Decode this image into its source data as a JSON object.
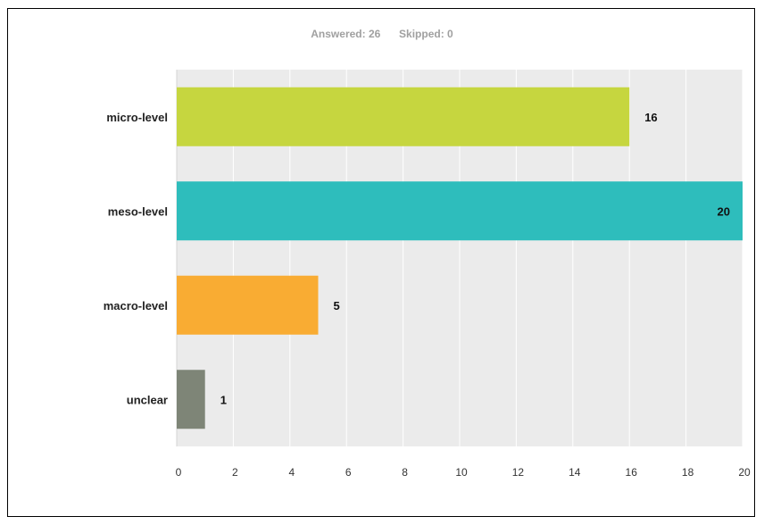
{
  "summary": {
    "answered_label": "Answered:",
    "answered_value": "26",
    "skipped_label": "Skipped:",
    "skipped_value": "0"
  },
  "chart_data": {
    "type": "bar",
    "orientation": "horizontal",
    "title": "",
    "xlabel": "",
    "ylabel": "",
    "categories": [
      "micro-level",
      "meso-level",
      "macro-level",
      "unclear"
    ],
    "values": [
      16,
      20,
      5,
      1
    ],
    "colors": [
      "#c6d63f",
      "#2ebdbc",
      "#f9ac33",
      "#7e8577"
    ],
    "xlim": [
      0,
      20
    ],
    "xticks": [
      0,
      2,
      4,
      6,
      8,
      10,
      12,
      14,
      16,
      18,
      20
    ],
    "grid": true,
    "legend": "none",
    "plot_background": "#ebebeb"
  }
}
